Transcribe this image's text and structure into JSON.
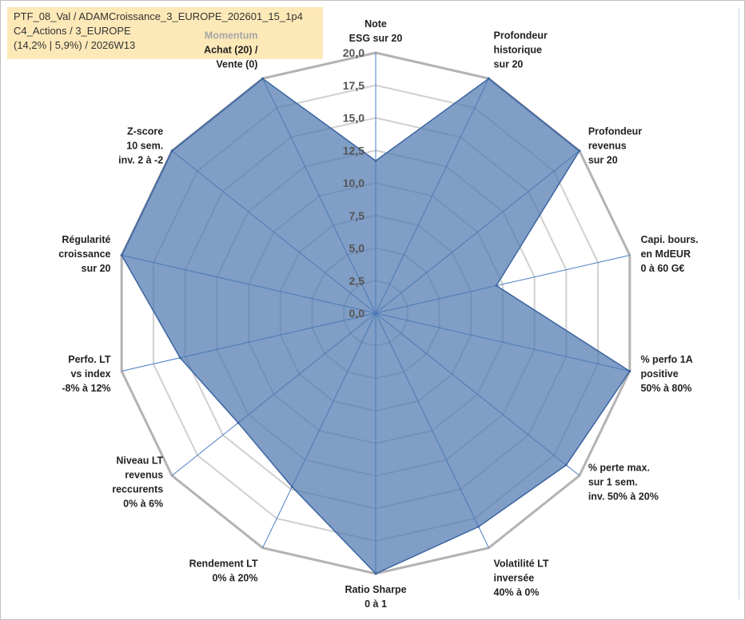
{
  "info": {
    "line1": "PTF_08_Val / ADAMCroissance_3_EUROPE_202601_15_1p4",
    "line2": "C4_Actions / 3_EUROPE",
    "line3": "(14,2% | 5,9%) / 2026W13"
  },
  "chart_data": {
    "type": "radar",
    "rmin": 0,
    "rmax": 20,
    "tick_step": 2.5,
    "tick_labels": [
      "0,0",
      "2,5",
      "5,0",
      "7,5",
      "10,0",
      "12,5",
      "15,0",
      "17,5",
      "20,0"
    ],
    "grid": true,
    "fill_color": "#4f78b0",
    "line_color": "#3b64a0",
    "grid_color": "#bfbfbf",
    "axes": [
      {
        "label": [
          "Note",
          "ESG sur 20"
        ]
      },
      {
        "label": [
          "Profondeur",
          "historique",
          "sur 20"
        ]
      },
      {
        "label": [
          "Profondeur",
          "revenus",
          "sur 20"
        ]
      },
      {
        "label": [
          "Capi. bours.",
          "en MdEUR",
          "0 à 60 G€"
        ]
      },
      {
        "label": [
          "% perfo 1A",
          "positive",
          "50% à 80%"
        ]
      },
      {
        "label": [
          "% perte max.",
          "sur 1 sem.",
          "inv. 50% à 20%"
        ]
      },
      {
        "label": [
          "Volatilité LT",
          "inversée",
          "40% à 0%"
        ]
      },
      {
        "label": [
          "Ratio Sharpe",
          "0 à 1"
        ]
      },
      {
        "label": [
          "Rendement LT",
          "0% à 20%"
        ]
      },
      {
        "label": [
          "Niveau LT",
          "revenus",
          "reccurents",
          "0% à 6%"
        ]
      },
      {
        "label": [
          "Perfo. LT",
          "vs index",
          "-8% à 12%"
        ]
      },
      {
        "label": [
          "Régularité",
          "croissance",
          "sur 20"
        ]
      },
      {
        "label": [
          "Z-score",
          "10 sem.",
          "inv. 2 à -2"
        ]
      },
      {
        "label": [
          "Momentum",
          "Achat (20) /",
          "Vente (0)"
        ]
      }
    ],
    "series": [
      {
        "values": [
          11.7,
          20,
          20,
          9.5,
          20,
          18.7,
          18.2,
          20,
          14.8,
          13.5,
          15.4,
          20,
          20,
          20
        ]
      }
    ]
  }
}
